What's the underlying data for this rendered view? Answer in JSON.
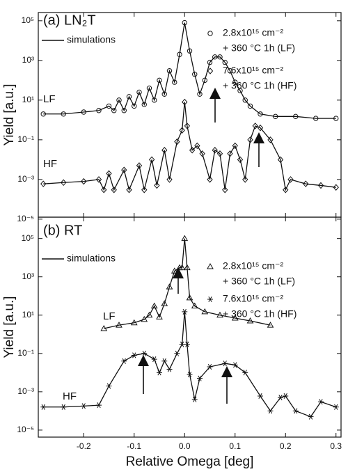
{
  "chart_data": [
    {
      "type": "line",
      "title": "(a) LN₂T",
      "ylabel": "Yield [a.u.]",
      "yscale": "log",
      "xlim": [
        -0.29,
        0.31
      ],
      "xticks": [
        -0.2,
        -0.1,
        0,
        0.1,
        0.2,
        0.3
      ],
      "ylim": [
        1.26e-05,
        260000.0
      ],
      "yticks": [
        {
          "value": 100000.0,
          "label": "10⁵"
        },
        {
          "value": 1000.0,
          "label": "10³"
        },
        {
          "value": 10,
          "label": "10¹"
        },
        {
          "value": 0.1,
          "label": "10⁻¹"
        },
        {
          "value": 0.001,
          "label": "10⁻³"
        },
        {
          "value": 1e-05,
          "label": "10⁻⁵"
        }
      ],
      "simulation_label": "simulations",
      "series": [
        {
          "name": [
            "2.8x10¹⁵ cm⁻²",
            "+ 360 °C 1h (LF)"
          ],
          "label": "LF",
          "marker": "circle",
          "color": "#111111",
          "x": [
            -0.28,
            -0.24,
            -0.2,
            -0.17,
            -0.15,
            -0.14,
            -0.13,
            -0.12,
            -0.11,
            -0.1,
            -0.09,
            -0.08,
            -0.07,
            -0.06,
            -0.05,
            -0.04,
            -0.03,
            -0.02,
            -0.01,
            0.0,
            0.01,
            0.02,
            0.03,
            0.04,
            0.05,
            0.06,
            0.07,
            0.08,
            0.09,
            0.1,
            0.11,
            0.12,
            0.13,
            0.15,
            0.18,
            0.22,
            0.26,
            0.3
          ],
          "values": [
            2,
            2,
            2.5,
            3,
            5,
            3,
            10,
            3,
            15,
            5,
            25,
            6,
            40,
            10,
            100,
            20,
            300,
            80,
            2000,
            80000,
            3000,
            200,
            20,
            100,
            800,
            1500,
            1500,
            800,
            300,
            80,
            30,
            10,
            5,
            2,
            1.5,
            1.5,
            1.2,
            1.2
          ]
        },
        {
          "name": [
            "7.6x10¹⁵ cm⁻²",
            "+ 360 °C 1h (HF)"
          ],
          "label": "HF",
          "marker": "diamond",
          "color": "#111111",
          "x": [
            -0.28,
            -0.24,
            -0.2,
            -0.17,
            -0.16,
            -0.15,
            -0.14,
            -0.12,
            -0.11,
            -0.09,
            -0.08,
            -0.065,
            -0.055,
            -0.04,
            -0.03,
            -0.015,
            -0.005,
            0.0,
            0.005,
            0.015,
            0.025,
            0.035,
            0.05,
            0.06,
            0.07,
            0.08,
            0.09,
            0.1,
            0.11,
            0.12,
            0.13,
            0.14,
            0.15,
            0.17,
            0.19,
            0.2,
            0.21,
            0.24,
            0.27,
            0.3
          ],
          "values": [
            0.0006,
            0.0007,
            0.0008,
            0.001,
            0.0003,
            0.002,
            0.0003,
            0.003,
            0.0003,
            0.005,
            0.0003,
            0.01,
            0.0005,
            0.03,
            0.001,
            0.08,
            0.3,
            8,
            0.5,
            0.03,
            0.05,
            0.02,
            0.001,
            0.03,
            0.02,
            0.0003,
            0.02,
            0.05,
            0.01,
            0.001,
            0.1,
            0.5,
            0.4,
            0.1,
            0.01,
            0.0003,
            0.001,
            0.0006,
            0.0005,
            0.0004
          ]
        }
      ]
    },
    {
      "type": "line",
      "title": "(b) RT",
      "ylabel": "Yield [a.u.]",
      "xlabel": "Relative Omega [deg]",
      "yscale": "log",
      "xlim": [
        -0.29,
        0.31
      ],
      "xticks": [
        -0.2,
        -0.1,
        {
          "value": 0,
          "label": "0.0"
        },
        0.1,
        0.2,
        0.3
      ],
      "ylim": [
        4.3e-06,
        1300000.0
      ],
      "yticks": [
        {
          "value": 100000.0,
          "label": "10⁵"
        },
        {
          "value": 1000.0,
          "label": "10³"
        },
        {
          "value": 10,
          "label": "10¹"
        },
        {
          "value": 0.1,
          "label": "10⁻¹"
        },
        {
          "value": 0.001,
          "label": "10⁻³"
        },
        {
          "value": 1e-05,
          "label": "10⁻⁵"
        }
      ],
      "simulation_label": "simulations",
      "series": [
        {
          "name": [
            "2.8x10¹⁵ cm⁻²",
            "+ 360 °C 1h (LF)"
          ],
          "label": "LF",
          "marker": "triangle",
          "color": "#111111",
          "x": [
            -0.16,
            -0.13,
            -0.1,
            -0.08,
            -0.07,
            -0.06,
            -0.05,
            -0.04,
            -0.03,
            -0.02,
            -0.01,
            -0.005,
            0.0,
            0.005,
            0.01,
            0.02,
            0.04,
            0.07,
            0.1,
            0.13,
            0.17
          ],
          "values": [
            2,
            3,
            4,
            6,
            10,
            30,
            8,
            40,
            300,
            2000,
            3000,
            3000,
            100000,
            3000,
            80,
            30,
            15,
            10,
            7,
            5,
            3
          ]
        },
        {
          "name": [
            "7.6x10¹⁵ cm⁻²",
            "+ 360 °C 1h (HF)"
          ],
          "label": "HF",
          "marker": "star",
          "color": "#111111",
          "x": [
            -0.28,
            -0.24,
            -0.2,
            -0.17,
            -0.15,
            -0.12,
            -0.1,
            -0.08,
            -0.06,
            -0.05,
            -0.04,
            -0.03,
            -0.015,
            -0.005,
            0.0,
            0.005,
            0.01,
            0.02,
            0.03,
            0.05,
            0.08,
            0.1,
            0.12,
            0.15,
            0.17,
            0.19,
            0.2,
            0.22,
            0.25,
            0.27,
            0.3
          ],
          "values": [
            0.00016,
            0.00016,
            0.00018,
            0.0002,
            0.002,
            0.04,
            0.08,
            0.1,
            0.05,
            0.01,
            0.04,
            0.015,
            0.1,
            0.3,
            15,
            0.3,
            0.008,
            0.0004,
            0.005,
            0.02,
            0.03,
            0.025,
            0.01,
            0.0006,
            0.0001,
            0.0005,
            0.0006,
            0.0001,
            5e-05,
            0.0003,
            0.00016
          ]
        }
      ]
    }
  ]
}
